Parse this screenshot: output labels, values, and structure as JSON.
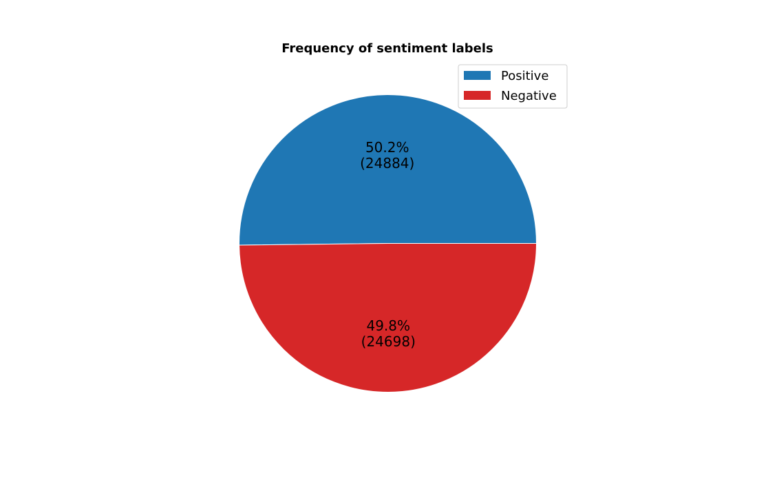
{
  "chart_data": {
    "type": "pie",
    "title": "Frequency of sentiment labels",
    "slices": [
      {
        "label": "Positive",
        "value": 24884,
        "percent_label": "50.2%",
        "count_label": "(24884)",
        "color": "#1f77b4"
      },
      {
        "label": "Negative",
        "value": 24698,
        "percent_label": "49.8%",
        "count_label": "(24698)",
        "color": "#d62728"
      }
    ],
    "start_angle_deg": 0,
    "direction": "counterclockwise",
    "legend_placement": "upper-right"
  }
}
